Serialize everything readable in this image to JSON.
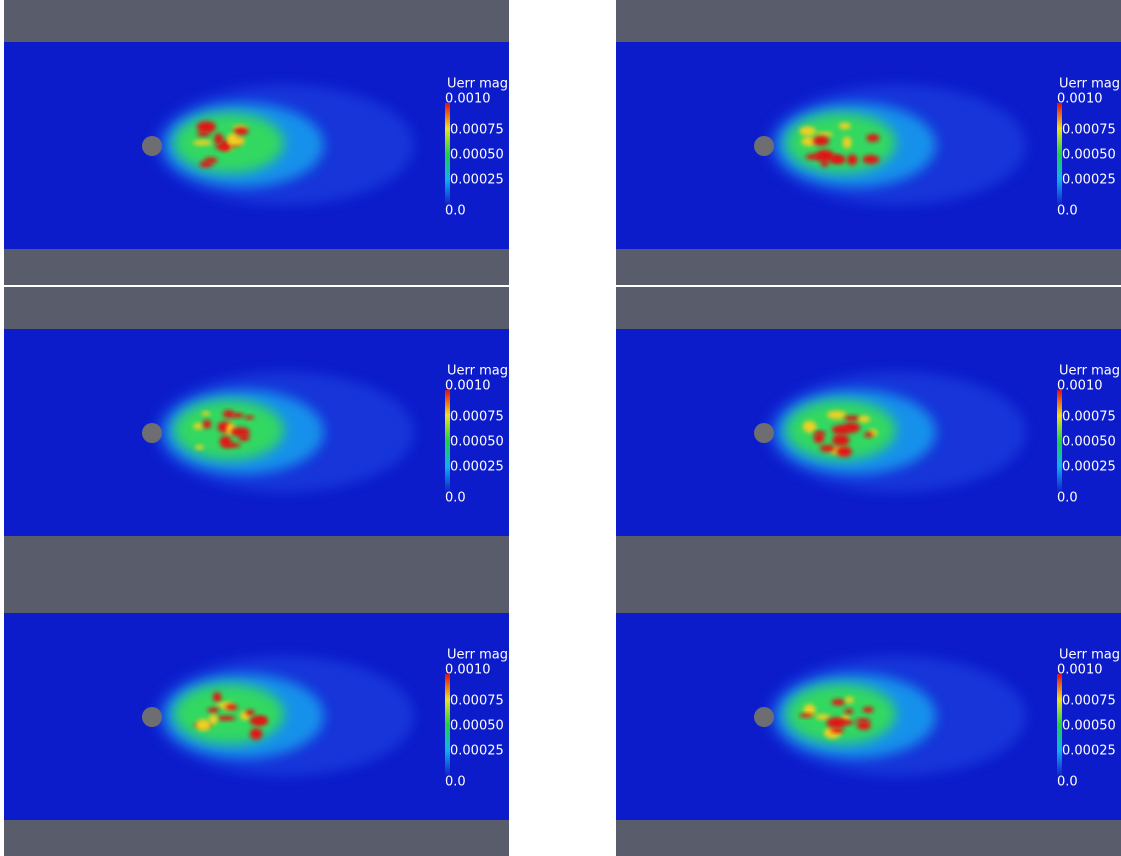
{
  "panels": [
    {
      "colorbar": {
        "title": "Uerr mag",
        "ticks": [
          "0.0010",
          "0.00075",
          "0.00050",
          "0.00025",
          "0.0"
        ]
      }
    },
    {
      "colorbar": {
        "title": "Uerr mag",
        "ticks": [
          "0.0010",
          "0.00075",
          "0.00050",
          "0.00025",
          "0.0"
        ]
      }
    },
    {
      "colorbar": {
        "title": "Uerr mag",
        "ticks": [
          "0.0010",
          "0.00075",
          "0.00050",
          "0.00025",
          "0.0"
        ]
      }
    },
    {
      "colorbar": {
        "title": "Uerr mag",
        "ticks": [
          "0.0010",
          "0.00075",
          "0.00050",
          "0.00025",
          "0.0"
        ]
      }
    },
    {
      "colorbar": {
        "title": "Uerr mag",
        "ticks": [
          "0.0010",
          "0.00075",
          "0.00050",
          "0.00025",
          "0.0"
        ]
      }
    },
    {
      "colorbar": {
        "title": "Uerr mag",
        "ticks": [
          "0.0010",
          "0.00075",
          "0.00050",
          "0.00025",
          "0.0"
        ]
      }
    }
  ]
}
